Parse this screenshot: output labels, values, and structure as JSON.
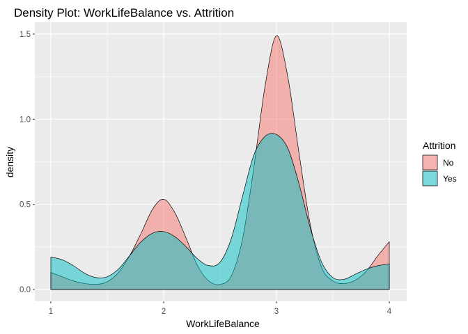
{
  "chart_data": {
    "type": "area",
    "title": "Density Plot: WorkLifeBalance vs. Attrition",
    "xlabel": "WorkLifeBalance",
    "ylabel": "density",
    "xlim": [
      1,
      4
    ],
    "ylim": [
      0,
      1.5
    ],
    "x_ticks": [
      "1",
      "2",
      "3",
      "4"
    ],
    "y_ticks": [
      "0.0",
      "0.5",
      "1.0",
      "1.5"
    ],
    "grid": true,
    "background": "#ebebeb",
    "legend": {
      "title": "Attrition",
      "placement": "right"
    },
    "series": [
      {
        "name": "No",
        "color": "#f8766d",
        "x": [
          1.0,
          1.1,
          1.2,
          1.3,
          1.4,
          1.5,
          1.6,
          1.7,
          1.8,
          1.9,
          2.0,
          2.1,
          2.2,
          2.3,
          2.4,
          2.5,
          2.6,
          2.7,
          2.8,
          2.9,
          3.0,
          3.1,
          3.2,
          3.3,
          3.4,
          3.5,
          3.6,
          3.7,
          3.8,
          3.9,
          4.0
        ],
        "values": [
          0.1,
          0.075,
          0.05,
          0.035,
          0.03,
          0.045,
          0.1,
          0.2,
          0.33,
          0.47,
          0.53,
          0.45,
          0.3,
          0.14,
          0.05,
          0.03,
          0.08,
          0.3,
          0.72,
          1.2,
          1.49,
          1.25,
          0.8,
          0.38,
          0.13,
          0.05,
          0.035,
          0.055,
          0.11,
          0.2,
          0.28
        ]
      },
      {
        "name": "Yes",
        "color": "#00bfc4",
        "x": [
          1.0,
          1.1,
          1.2,
          1.3,
          1.4,
          1.5,
          1.6,
          1.7,
          1.8,
          1.9,
          2.0,
          2.1,
          2.2,
          2.3,
          2.4,
          2.5,
          2.6,
          2.7,
          2.8,
          2.9,
          3.0,
          3.1,
          3.2,
          3.3,
          3.4,
          3.5,
          3.6,
          3.7,
          3.8,
          3.9,
          4.0
        ],
        "values": [
          0.19,
          0.175,
          0.14,
          0.095,
          0.07,
          0.075,
          0.12,
          0.2,
          0.28,
          0.33,
          0.34,
          0.31,
          0.25,
          0.18,
          0.14,
          0.16,
          0.3,
          0.55,
          0.79,
          0.9,
          0.91,
          0.83,
          0.62,
          0.36,
          0.16,
          0.07,
          0.06,
          0.09,
          0.12,
          0.14,
          0.15
        ]
      }
    ]
  }
}
